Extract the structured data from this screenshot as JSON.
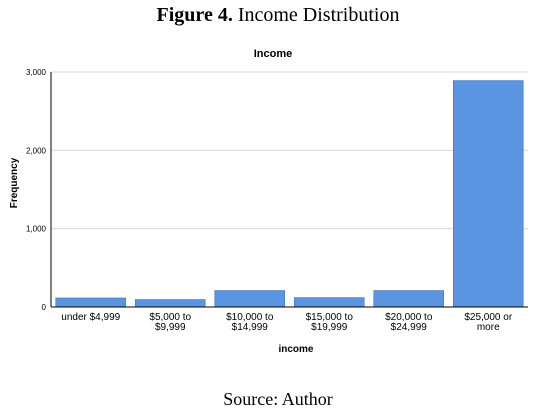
{
  "figure": {
    "label": "Figure 4.",
    "title": "Income Distribution",
    "source": "Source: Author"
  },
  "chart_data": {
    "type": "bar",
    "title": "Income",
    "xlabel": "income",
    "ylabel": "Frequency",
    "categories": [
      [
        "under $4,999"
      ],
      [
        "$5,000 to",
        "$9,999"
      ],
      [
        "$10,000 to",
        "$14,999"
      ],
      [
        "$15,000 to",
        "$19,999"
      ],
      [
        "$20,000 to",
        "$24,999"
      ],
      [
        "$25,000 or",
        "more"
      ]
    ],
    "values": [
      115,
      95,
      210,
      120,
      210,
      2890
    ],
    "ylim": [
      0,
      3000
    ],
    "yticks": [
      0,
      1000,
      2000,
      3000
    ],
    "ytick_labels": [
      "0",
      "1,000",
      "2,000",
      "3,000"
    ],
    "grid": true,
    "bar_color": "#5b94e0",
    "bar_stroke": "#3f74bd"
  }
}
